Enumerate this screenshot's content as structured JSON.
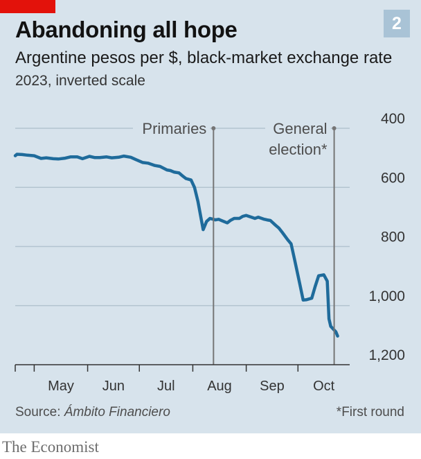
{
  "header": {
    "title": "Abandoning all hope",
    "badge": "2",
    "subtitle": "Argentine pesos per $, black-market exchange rate",
    "subtitle2": "2023, inverted scale"
  },
  "footer": {
    "source_prefix": "Source: ",
    "source_name": "Ámbito Financiero",
    "footnote": "*First round",
    "brand": "The Economist"
  },
  "colors": {
    "background": "#d7e3ec",
    "series": "#1f6b9b",
    "accent_red": "#e3120b",
    "badge": "#a9c3d6"
  },
  "chart_data": {
    "type": "line",
    "title": "Abandoning all hope",
    "subtitle": "Argentine pesos per $, black-market exchange rate",
    "note": "2023, inverted scale",
    "yaxis": {
      "inverted": true,
      "ylim": [
        400,
        1200
      ],
      "ticks": [
        400,
        600,
        800,
        1000,
        1200
      ],
      "tick_labels": [
        "400",
        "600",
        "800",
        "1,000",
        "1,200"
      ],
      "position": "right",
      "grid": true
    },
    "xaxis": {
      "range": [
        "2023-04-20",
        "2023-10-31"
      ],
      "month_labels": [
        "May",
        "Jun",
        "Jul",
        "Aug",
        "Sep",
        "Oct"
      ],
      "month_starts": [
        "2023-05-01",
        "2023-06-01",
        "2023-07-01",
        "2023-08-01",
        "2023-09-01",
        "2023-10-01",
        "2023-11-01"
      ]
    },
    "annotations": [
      {
        "label": "Primaries",
        "date": "2023-08-13"
      },
      {
        "label": "General election*",
        "lines": [
          "General",
          "election*"
        ],
        "date": "2023-10-22"
      }
    ],
    "series": [
      {
        "x": [
          "2023-04-20",
          "2023-04-21",
          "2023-04-24",
          "2023-04-27",
          "2023-05-01",
          "2023-05-05",
          "2023-05-08",
          "2023-05-12",
          "2023-05-15",
          "2023-05-19",
          "2023-05-22",
          "2023-05-26",
          "2023-05-29",
          "2023-06-02",
          "2023-06-05",
          "2023-06-08",
          "2023-06-12",
          "2023-06-15",
          "2023-06-19",
          "2023-06-22",
          "2023-06-26",
          "2023-06-29",
          "2023-07-03",
          "2023-07-06",
          "2023-07-10",
          "2023-07-13",
          "2023-07-17",
          "2023-07-19",
          "2023-07-21",
          "2023-07-24",
          "2023-07-26",
          "2023-07-28",
          "2023-07-31",
          "2023-08-02",
          "2023-08-04",
          "2023-08-07",
          "2023-08-09",
          "2023-08-11",
          "2023-08-14",
          "2023-08-16",
          "2023-08-18",
          "2023-08-21",
          "2023-08-23",
          "2023-08-25",
          "2023-08-28",
          "2023-08-30",
          "2023-09-01",
          "2023-09-04",
          "2023-09-06",
          "2023-09-08",
          "2023-09-11",
          "2023-09-13",
          "2023-09-15",
          "2023-09-18",
          "2023-09-20",
          "2023-09-22",
          "2023-09-25",
          "2023-09-27",
          "2023-09-29",
          "2023-10-02",
          "2023-10-04",
          "2023-10-06",
          "2023-10-09",
          "2023-10-11",
          "2023-10-13",
          "2023-10-16",
          "2023-10-18",
          "2023-10-19",
          "2023-10-20",
          "2023-10-23",
          "2023-10-24"
        ],
        "values": [
          493,
          488,
          489,
          491,
          493,
          502,
          500,
          503,
          504,
          501,
          497,
          497,
          503,
          495,
          499,
          499,
          497,
          500,
          498,
          494,
          498,
          506,
          516,
          518,
          526,
          529,
          541,
          543,
          548,
          551,
          561,
          570,
          575,
          600,
          648,
          743,
          715,
          705,
          710,
          708,
          713,
          720,
          711,
          705,
          705,
          698,
          695,
          701,
          705,
          701,
          707,
          710,
          712,
          728,
          738,
          753,
          777,
          791,
          843,
          925,
          981,
          980,
          975,
          935,
          899,
          896,
          917,
          1045,
          1070,
          1089,
          1103
        ]
      }
    ]
  }
}
